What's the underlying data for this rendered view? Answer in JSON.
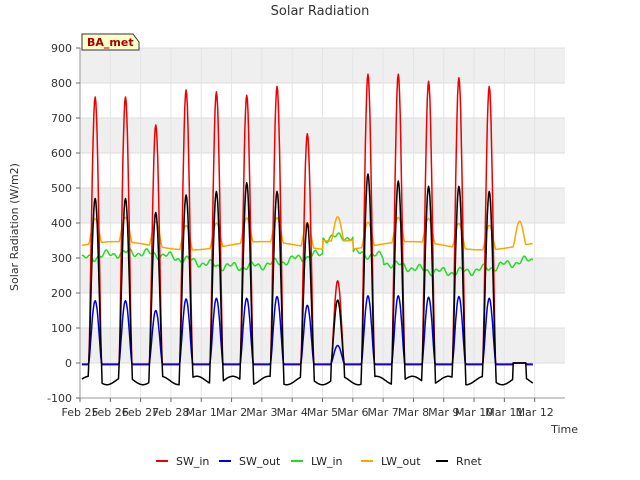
{
  "chart_data": {
    "type": "line",
    "title": "Solar Radiation",
    "xlabel": "Time",
    "ylabel": "Solar Radiation (W/m2)",
    "ylim": [
      -100,
      900
    ],
    "yticks": [
      -100,
      0,
      100,
      200,
      300,
      400,
      500,
      600,
      700,
      800,
      900
    ],
    "xlim": [
      0,
      16
    ],
    "x_tick_labels": [
      "Feb 25",
      "Feb 26",
      "Feb 27",
      "Feb 28",
      "Mar 1",
      "Mar 2",
      "Mar 3",
      "Mar 4",
      "Mar 5",
      "Mar 6",
      "Mar 7",
      "Mar 8",
      "Mar 9",
      "Mar 10",
      "Mar 11",
      "Mar 12"
    ],
    "x_units": "days since Feb 25",
    "grid": true,
    "legend_position": "bottom",
    "tag": "BA_met",
    "daily_peaks": {
      "days": [
        0.5,
        1.5,
        2.5,
        3.5,
        4.5,
        5.5,
        6.5,
        7.5,
        8.5,
        9.5,
        10.5,
        11.5,
        12.5,
        13.5,
        14.5
      ],
      "SW_in": [
        760,
        760,
        680,
        780,
        775,
        765,
        790,
        655,
        235,
        825,
        825,
        805,
        815,
        790,
        0
      ],
      "SW_out": [
        178,
        178,
        150,
        183,
        185,
        185,
        190,
        165,
        50,
        192,
        192,
        188,
        190,
        185,
        0
      ],
      "Rnet": [
        470,
        470,
        430,
        480,
        490,
        515,
        490,
        400,
        180,
        540,
        520,
        505,
        505,
        490,
        0
      ]
    },
    "series": [
      {
        "name": "SW_in",
        "color": "#ee0000"
      },
      {
        "name": "SW_out",
        "color": "#0000dd"
      },
      {
        "name": "LW_in",
        "color": "#22dd22"
      },
      {
        "name": "LW_out",
        "color": "#ffa500"
      },
      {
        "name": "Rnet",
        "color": "#000000"
      }
    ]
  }
}
